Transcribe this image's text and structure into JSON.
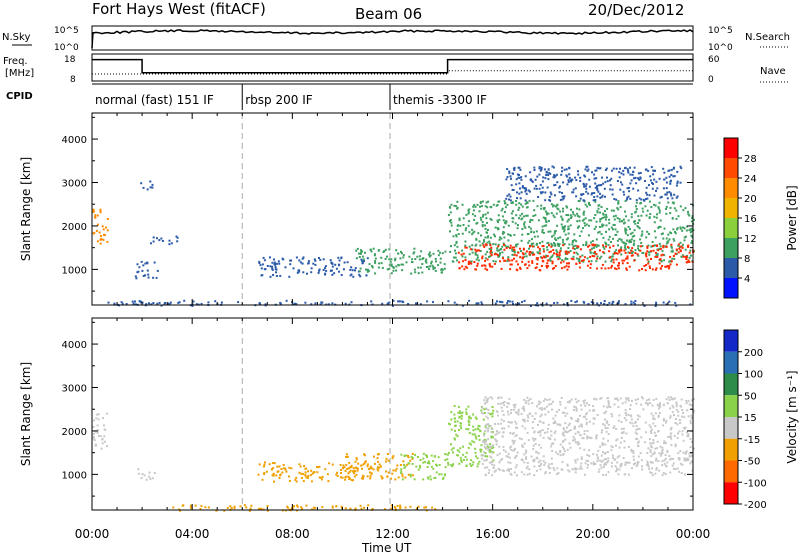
{
  "header": {
    "station": "Fort Hays West (fitACF)",
    "beam": "Beam 06",
    "date": "20/Dec/2012"
  },
  "strip_nsky": {
    "left_label": "N.Sky",
    "right_label": "N.Search",
    "left_ticks": [
      "10^5",
      "10^0"
    ],
    "right_ticks": [
      "10^5",
      "10^0"
    ]
  },
  "strip_freq": {
    "left_label_1": "Freq.",
    "left_label_2": "[MHz]",
    "right_label": "Nave",
    "left_ticks": [
      "18",
      "8"
    ],
    "right_ticks": [
      "60",
      "0"
    ],
    "freq_steps": [
      [
        0,
        16.5
      ],
      [
        2.0,
        11.0
      ],
      [
        14.2,
        16.5
      ],
      [
        24,
        16.5
      ]
    ],
    "nave_steps": [
      [
        0,
        15
      ],
      [
        2.0,
        15
      ],
      [
        14.2,
        23
      ],
      [
        24,
        23
      ]
    ]
  },
  "cpid": {
    "label": "CPID",
    "segments": [
      {
        "start": 0.0,
        "text": "normal (fast) 151 IF"
      },
      {
        "start": 6.0,
        "text": "rbsp 200 IF"
      },
      {
        "start": 11.9,
        "text": "themis -3300 IF"
      }
    ]
  },
  "chart_data": [
    {
      "type": "heatmap",
      "title": "Power",
      "ylabel": "Slant Range [km]",
      "xlabel": "Time UT",
      "xlim": [
        0,
        24
      ],
      "ylim": [
        180,
        4600
      ],
      "y_ticks": [
        1000,
        2000,
        3000,
        4000
      ],
      "x_ticks": [
        "00:00",
        "04:00",
        "08:00",
        "12:00",
        "16:00",
        "20:00",
        "00:00"
      ],
      "colorbar": {
        "label": "Power [dB]",
        "ticks": [
          "28",
          "24",
          "20",
          "16",
          "12",
          "8",
          "4"
        ],
        "colors": [
          "#ff0000",
          "#ff4a00",
          "#ff8c00",
          "#f0b400",
          "#8ccf3c",
          "#3ca060",
          "#2a5aa8",
          "#0012ff"
        ]
      },
      "echo_regions": [
        {
          "t0": 0.0,
          "t1": 0.6,
          "r0": 1600,
          "r1": 2450,
          "color": "#ff8c00"
        },
        {
          "t0": 1.7,
          "t1": 2.6,
          "r0": 800,
          "r1": 1200,
          "color": "#2a5aa8"
        },
        {
          "t0": 1.9,
          "t1": 2.5,
          "r0": 2850,
          "r1": 3050,
          "color": "#2a5aa8"
        },
        {
          "t0": 2.3,
          "t1": 3.4,
          "r0": 1600,
          "r1": 1800,
          "color": "#2a5aa8"
        },
        {
          "t0": 6.6,
          "t1": 11.0,
          "r0": 850,
          "r1": 1300,
          "color": "#2a5aa8"
        },
        {
          "t0": 10.5,
          "t1": 14.2,
          "r0": 900,
          "r1": 1500,
          "color": "#3ca060"
        },
        {
          "t0": 14.2,
          "t1": 24.0,
          "r0": 1200,
          "r1": 2600,
          "color": "#3ca060"
        },
        {
          "t0": 14.6,
          "t1": 24.0,
          "r0": 1000,
          "r1": 1600,
          "color": "#ff2a00"
        },
        {
          "t0": 16.5,
          "t1": 23.5,
          "r0": 2600,
          "r1": 3400,
          "color": "#2a5aa8"
        },
        {
          "t0": 0.5,
          "t1": 24.0,
          "r0": 180,
          "r1": 300,
          "color": "#2a5aa8"
        }
      ]
    },
    {
      "type": "heatmap",
      "title": "Velocity",
      "ylabel": "Slant Range [km]",
      "xlabel": "Time UT",
      "xlim": [
        0,
        24
      ],
      "ylim": [
        180,
        4600
      ],
      "y_ticks": [
        1000,
        2000,
        3000,
        4000
      ],
      "x_ticks": [
        "00:00",
        "04:00",
        "08:00",
        "12:00",
        "16:00",
        "20:00",
        "00:00"
      ],
      "colorbar": {
        "label": "Velocity [m s⁻¹]",
        "ticks": [
          "200",
          "100",
          "50",
          "15",
          "-15",
          "-50",
          "-100",
          "-200"
        ],
        "colors": [
          "#1428c8",
          "#2a6eb4",
          "#2e8c4a",
          "#8ad24a",
          "#c8c8c8",
          "#f0a000",
          "#ff6a00",
          "#ff0000"
        ]
      },
      "echo_regions": [
        {
          "t0": 0.0,
          "t1": 0.6,
          "r0": 1600,
          "r1": 2450,
          "color": "#c8c8c8"
        },
        {
          "t0": 1.8,
          "t1": 2.5,
          "r0": 850,
          "r1": 1150,
          "color": "#c8c8c8"
        },
        {
          "t0": 6.6,
          "t1": 10.5,
          "r0": 850,
          "r1": 1300,
          "color": "#f0a000"
        },
        {
          "t0": 10.0,
          "t1": 12.8,
          "r0": 900,
          "r1": 1500,
          "color": "#f0a000"
        },
        {
          "t0": 12.3,
          "t1": 14.2,
          "r0": 900,
          "r1": 1500,
          "color": "#8ad24a"
        },
        {
          "t0": 14.2,
          "t1": 16.0,
          "r0": 1200,
          "r1": 2600,
          "color": "#8ad24a"
        },
        {
          "t0": 15.5,
          "t1": 24.0,
          "r0": 1000,
          "r1": 2800,
          "color": "#c8c8c8"
        },
        {
          "t0": 3.0,
          "t1": 14.0,
          "r0": 180,
          "r1": 320,
          "color": "#f0a000"
        }
      ]
    }
  ]
}
